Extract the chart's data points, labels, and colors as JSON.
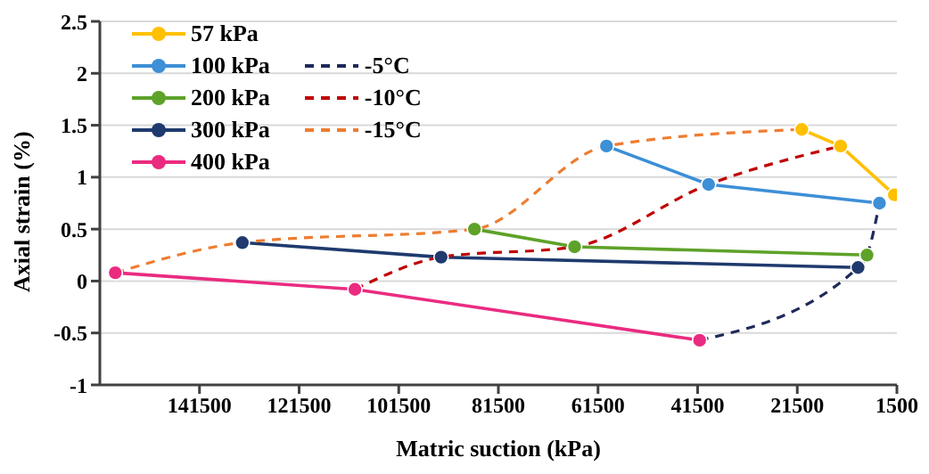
{
  "chart_data": {
    "type": "line",
    "xlabel": "Matric suction (kPa)",
    "ylabel": "Axial strain (%)",
    "xlim": [
      161500,
      1500
    ],
    "xticks": [
      141500,
      121500,
      101500,
      81500,
      61500,
      41500,
      21500,
      1500
    ],
    "ylim": [
      -1,
      2.5
    ],
    "yticks": [
      -1,
      -0.5,
      0,
      0.5,
      1,
      1.5,
      2,
      2.5
    ],
    "grid": "y",
    "legend": "top left",
    "marker": "circle",
    "series": [
      {
        "name": "57 kPa",
        "color": "#ffc000",
        "x": [
          20600,
          12800,
          2000
        ],
        "values": [
          1.46,
          1.3,
          0.83
        ]
      },
      {
        "name": "100 kPa",
        "color": "#3d8fd6",
        "x": [
          59800,
          39300,
          5000
        ],
        "values": [
          1.3,
          0.93,
          0.75
        ]
      },
      {
        "name": "200 kPa",
        "color": "#5ea229",
        "x": [
          86300,
          66200,
          7500
        ],
        "values": [
          0.5,
          0.33,
          0.25
        ]
      },
      {
        "name": "300 kPa",
        "color": "#1f3a6e",
        "x": [
          132900,
          93000,
          9300
        ],
        "values": [
          0.37,
          0.23,
          0.13
        ]
      },
      {
        "name": "400 kPa",
        "color": "#ea2b80",
        "x": [
          158400,
          110300,
          41100
        ],
        "values": [
          0.08,
          -0.08,
          -0.57
        ]
      },
      {
        "name": "-5°C",
        "color": "#1f2a5a",
        "line_style": "dashed",
        "marker": "none",
        "x": [
          41100,
          9300,
          7500,
          5000
        ],
        "values": [
          -0.57,
          0.13,
          0.25,
          0.75
        ]
      },
      {
        "name": "-10°C",
        "color": "#c00000",
        "line_style": "dashed",
        "marker": "none",
        "x": [
          110300,
          93000,
          66200,
          39300,
          12800
        ],
        "values": [
          -0.08,
          0.23,
          0.33,
          0.93,
          1.3
        ]
      },
      {
        "name": "-15°C",
        "color": "#ed7d31",
        "line_style": "dashed",
        "marker": "none",
        "x": [
          158400,
          132900,
          86300,
          59800,
          20600
        ],
        "values": [
          0.08,
          0.37,
          0.5,
          1.3,
          1.46
        ]
      }
    ]
  }
}
